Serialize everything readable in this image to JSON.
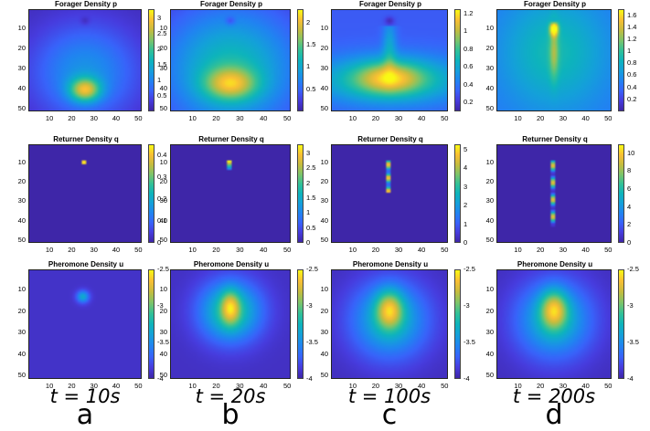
{
  "chart_data": {
    "type": "heatmap",
    "colormap": "parula",
    "columns": [
      {
        "time": "t = 10s",
        "letter": "a"
      },
      {
        "time": "t = 20s",
        "letter": "b"
      },
      {
        "time": "t = 100s",
        "letter": "c"
      },
      {
        "time": "t = 200s",
        "letter": "d"
      }
    ],
    "rows": [
      {
        "title": "Forager Density p",
        "panels": [
          {
            "cbar_range": [
              0,
              3.3
            ],
            "cbar_ticks": [
              "3",
              "2.5",
              "2",
              "1.5",
              "1",
              "0.5"
            ]
          },
          {
            "cbar_range": [
              0,
              2.3
            ],
            "cbar_ticks": [
              "2",
              "1.5",
              "1",
              "0.5"
            ]
          },
          {
            "cbar_range": [
              0.1,
              1.25
            ],
            "cbar_ticks": [
              "1.2",
              "1",
              "0.8",
              "0.6",
              "0.4",
              "0.2"
            ]
          },
          {
            "cbar_range": [
              0,
              1.7
            ],
            "cbar_ticks": [
              "1.6",
              "1.4",
              "1.2",
              "1",
              "0.8",
              "0.6",
              "0.4",
              "0.2"
            ]
          }
        ]
      },
      {
        "title": "Returner Density q",
        "panels": [
          {
            "cbar_range": [
              0,
              0.45
            ],
            "cbar_ticks": [
              "0.4",
              "0.3",
              "0.2",
              "0.1",
              "0"
            ]
          },
          {
            "cbar_range": [
              0,
              3.3
            ],
            "cbar_ticks": [
              "3",
              "2.5",
              "2",
              "1.5",
              "1",
              "0.5",
              "0"
            ]
          },
          {
            "cbar_range": [
              0,
              5.3
            ],
            "cbar_ticks": [
              "5",
              "4",
              "3",
              "2",
              "1",
              "0"
            ]
          },
          {
            "cbar_range": [
              0,
              11
            ],
            "cbar_ticks": [
              "10",
              "8",
              "6",
              "4",
              "2",
              "0"
            ]
          }
        ]
      },
      {
        "title": "Pheromone Density u",
        "panels": [
          {
            "cbar_range": [
              -4,
              -2.5
            ],
            "cbar_ticks": [
              "-2.5",
              "-3",
              "-3.5",
              "-4"
            ]
          },
          {
            "cbar_range": [
              -4,
              -2.5
            ],
            "cbar_ticks": [
              "-2.5",
              "-3",
              "-3.5",
              "-4"
            ]
          },
          {
            "cbar_range": [
              -4,
              -2.5
            ],
            "cbar_ticks": [
              "-2.5",
              "-3",
              "-3.5",
              "-4"
            ]
          },
          {
            "cbar_range": [
              -4,
              -2.5
            ],
            "cbar_ticks": [
              "-2.5",
              "-3",
              "-3.5",
              "-4"
            ]
          }
        ]
      }
    ],
    "x_ticks": [
      "10",
      "20",
      "30",
      "40",
      "50"
    ],
    "y_ticks": [
      "10",
      "20",
      "30",
      "40",
      "50"
    ],
    "grid_size": 51
  }
}
